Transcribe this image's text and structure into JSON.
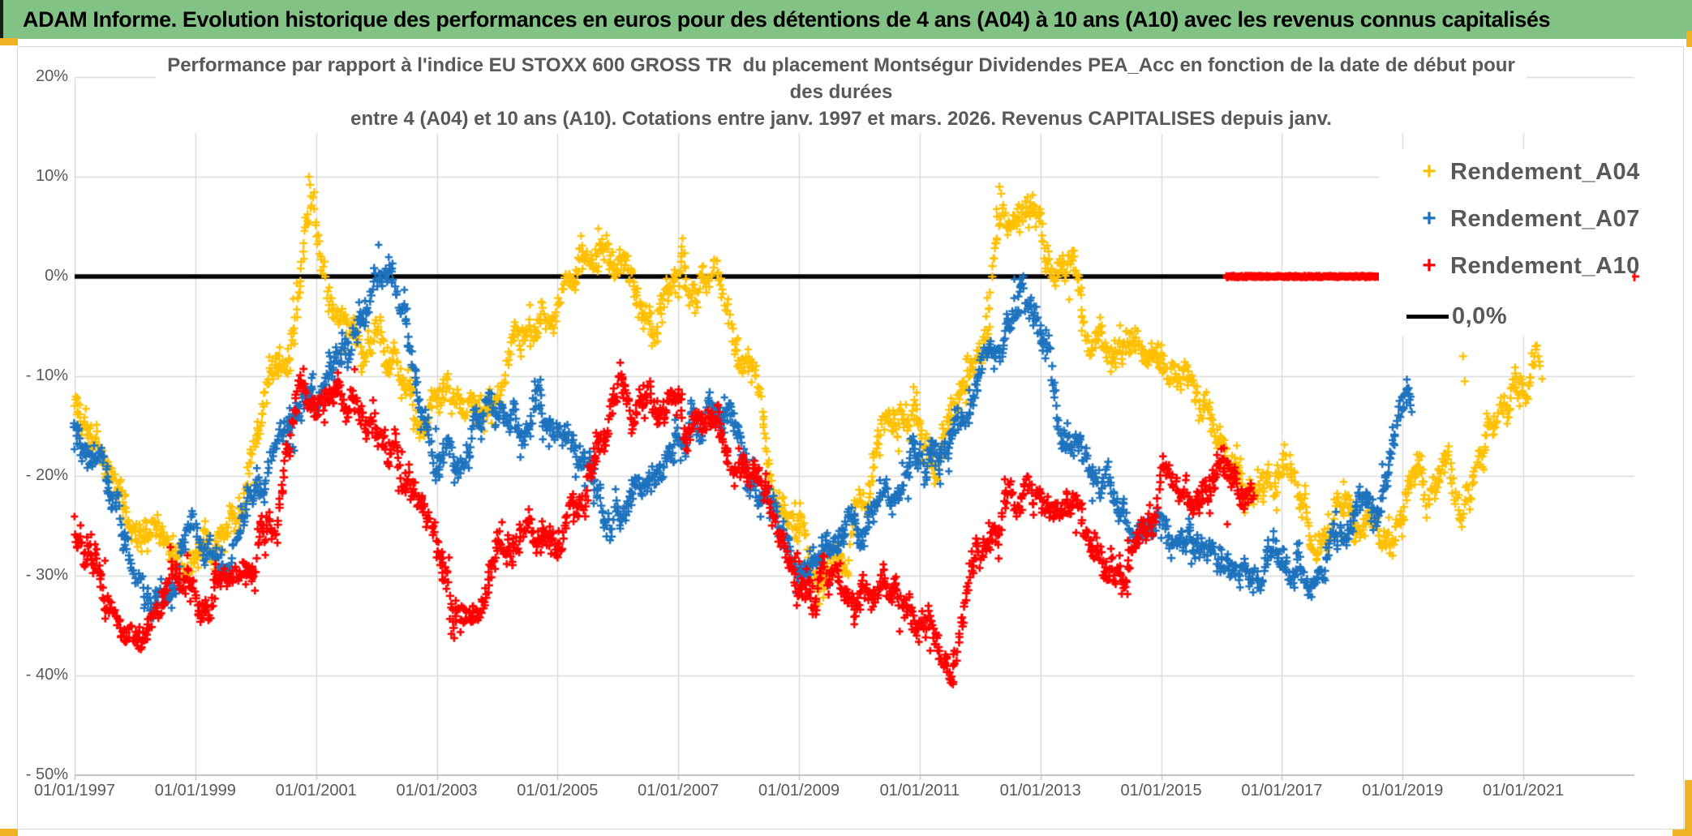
{
  "header": {
    "title": "ADAM Informe. Evolution historique des performances en euros pour des détentions de 4 ans (A04) à 10 ans (A10) avec les revenus connus capitalisés",
    "bg_color": "#82C385",
    "accent_color": "#F0B323"
  },
  "chart": {
    "title_lines": [
      "Performance par rapport à l'indice EU STOXX 600 GROSS TR  du placement Montségur Dividendes PEA_Acc en fonction de la date de début pour",
      "des durées",
      "entre 4 (A04) et 10 ans (A10). Cotations entre janv. 1997 et mars. 2026. Revenus CAPITALISES depuis janv."
    ],
    "text_color": "#595959",
    "grid_color": "#D9D9D9",
    "axis_color": "#BFBFBF"
  },
  "chart_data": {
    "type": "scatter",
    "title": "Performance par rapport à l'indice EU STOXX 600 GROSS TR du placement Montségur Dividendes PEA_Acc",
    "legend_position": "right-inside",
    "grid": true,
    "y_axis": {
      "unit": "%",
      "range": [
        -50,
        20
      ],
      "ticks": [
        {
          "label": "20%",
          "value": 20
        },
        {
          "label": "10%",
          "value": 10
        },
        {
          "label": "0%",
          "value": 0
        },
        {
          "label": "- 10%",
          "value": -10
        },
        {
          "label": "- 20%",
          "value": -20
        },
        {
          "label": "- 30%",
          "value": -30
        },
        {
          "label": "- 40%",
          "value": -40
        },
        {
          "label": "- 50%",
          "value": -50
        }
      ]
    },
    "x_axis": {
      "min_year": 1997.0,
      "max_year": 2022.85,
      "ticks": [
        {
          "label": "01/01/1997",
          "year": 1997
        },
        {
          "label": "01/01/1999",
          "year": 1999
        },
        {
          "label": "01/01/2001",
          "year": 2001
        },
        {
          "label": "01/01/2003",
          "year": 2003
        },
        {
          "label": "01/01/2005",
          "year": 2005
        },
        {
          "label": "01/01/2007",
          "year": 2007
        },
        {
          "label": "01/01/2009",
          "year": 2009
        },
        {
          "label": "01/01/2011",
          "year": 2011
        },
        {
          "label": "01/01/2013",
          "year": 2013
        },
        {
          "label": "01/01/2015",
          "year": 2015
        },
        {
          "label": "01/01/2017",
          "year": 2017
        },
        {
          "label": "01/01/2019",
          "year": 2019
        },
        {
          "label": "01/01/2021",
          "year": 2021
        }
      ]
    },
    "reference_line": {
      "name": "0,0%",
      "value": 0,
      "color": "#000000",
      "from_year": 1997.0,
      "to_year": 2016.08
    },
    "series": [
      {
        "name": "Rendement_A04",
        "color": "#FFC000",
        "marker": "plus",
        "seed": 11,
        "spread": 1.4,
        "lw": 2.3,
        "waypoints": [
          [
            1997.0,
            -13
          ],
          [
            1997.3,
            -17
          ],
          [
            1997.65,
            -20
          ],
          [
            1998.0,
            -26
          ],
          [
            1998.3,
            -22
          ],
          [
            1998.65,
            -23
          ],
          [
            1999.0,
            -25
          ],
          [
            1999.3,
            -27
          ],
          [
            1999.7,
            -23
          ],
          [
            2000.0,
            -18
          ],
          [
            2000.3,
            -10
          ],
          [
            2000.6,
            -5
          ],
          [
            2000.85,
            4
          ],
          [
            2000.95,
            6
          ],
          [
            2001.1,
            1
          ],
          [
            2001.3,
            -3
          ],
          [
            2001.6,
            -6
          ],
          [
            2001.9,
            -7
          ],
          [
            2002.2,
            -9
          ],
          [
            2002.5,
            -12
          ],
          [
            2002.8,
            -15
          ],
          [
            2003.1,
            -14
          ],
          [
            2003.4,
            -14.5
          ],
          [
            2003.7,
            -13
          ],
          [
            2004.0,
            -11
          ],
          [
            2004.3,
            -8
          ],
          [
            2004.6,
            -5.5
          ],
          [
            2004.9,
            -3
          ],
          [
            2005.15,
            -0.5
          ],
          [
            2005.4,
            1.5
          ],
          [
            2005.7,
            2.5
          ],
          [
            2006.0,
            1.5
          ],
          [
            2006.2,
            -0.5
          ],
          [
            2006.45,
            -5
          ],
          [
            2006.65,
            -3.5
          ],
          [
            2006.85,
            -1
          ],
          [
            2007.1,
            0.5
          ],
          [
            2007.3,
            -0.5
          ],
          [
            2007.5,
            1
          ],
          [
            2007.7,
            -1
          ],
          [
            2007.9,
            -4
          ],
          [
            2008.1,
            -8
          ],
          [
            2008.3,
            -12
          ],
          [
            2008.5,
            -16
          ],
          [
            2008.75,
            -21
          ],
          [
            2009.0,
            -26
          ],
          [
            2009.2,
            -30
          ],
          [
            2009.5,
            -29
          ],
          [
            2009.8,
            -26.5
          ],
          [
            2010.1,
            -23
          ],
          [
            2010.4,
            -17
          ],
          [
            2010.7,
            -15
          ],
          [
            2011.0,
            -15
          ],
          [
            2011.2,
            -17
          ],
          [
            2011.5,
            -15
          ],
          [
            2011.75,
            -11
          ],
          [
            2012.0,
            -7
          ],
          [
            2012.15,
            -2
          ],
          [
            2012.3,
            4.5
          ],
          [
            2012.5,
            4
          ],
          [
            2012.7,
            3
          ],
          [
            2012.85,
            2
          ],
          [
            2013.0,
            4.5
          ],
          [
            2013.2,
            2.5
          ],
          [
            2013.45,
            0
          ],
          [
            2013.6,
            -1.5
          ],
          [
            2013.8,
            -6
          ],
          [
            2014.0,
            -9
          ],
          [
            2014.2,
            -10
          ],
          [
            2014.45,
            -8
          ],
          [
            2014.65,
            -7
          ],
          [
            2014.9,
            -8
          ],
          [
            2015.1,
            -9
          ],
          [
            2015.35,
            -11
          ],
          [
            2015.6,
            -13
          ],
          [
            2015.85,
            -16
          ],
          [
            2016.1,
            -17
          ],
          [
            2016.35,
            -19
          ],
          [
            2016.6,
            -19
          ],
          [
            2016.85,
            -20
          ],
          [
            2017.1,
            -21
          ],
          [
            2017.35,
            -23
          ],
          [
            2017.6,
            -25
          ],
          [
            2017.85,
            -23
          ],
          [
            2018.1,
            -23.5
          ],
          [
            2018.35,
            -26
          ],
          [
            2018.6,
            -25
          ],
          [
            2018.85,
            -24
          ],
          [
            2019.1,
            -22
          ],
          [
            2019.3,
            -21
          ],
          [
            2019.5,
            -22
          ],
          [
            2019.7,
            -19.5
          ],
          [
            2019.95,
            -22
          ],
          [
            2020.1,
            -20
          ],
          [
            2020.35,
            -17
          ],
          [
            2020.6,
            -13.5
          ],
          [
            2020.8,
            -12
          ],
          [
            2021.0,
            -9.5
          ],
          [
            2021.15,
            -7.5
          ],
          [
            2021.3,
            -6.5
          ]
        ],
        "outliers": [
          [
            2000.88,
            10
          ],
          [
            2000.9,
            9.2
          ],
          [
            2012.32,
            9
          ],
          [
            2012.35,
            8.3
          ],
          [
            2020.0,
            -8
          ],
          [
            2020.03,
            -10.5
          ]
        ]
      },
      {
        "name": "Rendement_A07",
        "color": "#1E73BE",
        "marker": "plus",
        "seed": 22,
        "spread": 1.3,
        "lw": 2.5,
        "waypoints": [
          [
            1997.0,
            -15
          ],
          [
            1997.3,
            -18
          ],
          [
            1997.6,
            -21
          ],
          [
            1997.9,
            -26
          ],
          [
            1998.2,
            -31
          ],
          [
            1998.5,
            -30
          ],
          [
            1998.8,
            -26
          ],
          [
            1999.1,
            -26
          ],
          [
            1999.4,
            -29
          ],
          [
            1999.7,
            -26
          ],
          [
            2000.0,
            -22
          ],
          [
            2000.3,
            -19
          ],
          [
            2000.6,
            -15
          ],
          [
            2000.9,
            -11
          ],
          [
            2001.2,
            -9
          ],
          [
            2001.5,
            -7
          ],
          [
            2001.75,
            -3
          ],
          [
            2002.0,
            1.5
          ],
          [
            2002.15,
            2.5
          ],
          [
            2002.35,
            -1
          ],
          [
            2002.6,
            -7
          ],
          [
            2002.85,
            -13
          ],
          [
            2003.1,
            -17
          ],
          [
            2003.35,
            -20
          ],
          [
            2003.6,
            -15
          ],
          [
            2003.85,
            -13
          ],
          [
            2004.1,
            -13
          ],
          [
            2004.4,
            -14
          ],
          [
            2004.7,
            -13.5
          ],
          [
            2005.0,
            -16
          ],
          [
            2005.3,
            -19
          ],
          [
            2005.6,
            -23
          ],
          [
            2005.9,
            -24
          ],
          [
            2006.15,
            -22
          ],
          [
            2006.4,
            -21
          ],
          [
            2006.7,
            -19
          ],
          [
            2007.0,
            -16
          ],
          [
            2007.3,
            -14
          ],
          [
            2007.6,
            -13
          ],
          [
            2007.9,
            -16
          ],
          [
            2008.1,
            -19
          ],
          [
            2008.4,
            -22
          ],
          [
            2008.7,
            -25
          ],
          [
            2009.0,
            -28.5
          ],
          [
            2009.25,
            -31
          ],
          [
            2009.5,
            -29
          ],
          [
            2009.75,
            -27
          ],
          [
            2010.0,
            -25
          ],
          [
            2010.3,
            -23
          ],
          [
            2010.6,
            -22.5
          ],
          [
            2010.9,
            -18
          ],
          [
            2011.1,
            -19
          ],
          [
            2011.4,
            -18.5
          ],
          [
            2011.7,
            -15
          ],
          [
            2012.0,
            -11
          ],
          [
            2012.2,
            -7
          ],
          [
            2012.45,
            -4
          ],
          [
            2012.65,
            -2
          ],
          [
            2012.9,
            -5
          ],
          [
            2013.1,
            -9.5
          ],
          [
            2013.3,
            -13
          ],
          [
            2013.5,
            -16
          ],
          [
            2013.7,
            -18
          ],
          [
            2013.95,
            -21
          ],
          [
            2014.2,
            -23
          ],
          [
            2014.5,
            -24
          ],
          [
            2014.8,
            -25
          ],
          [
            2015.1,
            -25.5
          ],
          [
            2015.4,
            -26
          ],
          [
            2015.7,
            -27
          ],
          [
            2016.0,
            -27.5
          ],
          [
            2016.25,
            -29
          ],
          [
            2016.5,
            -28
          ],
          [
            2016.8,
            -28.5
          ],
          [
            2017.05,
            -27.5
          ],
          [
            2017.3,
            -29.5
          ],
          [
            2017.6,
            -29
          ],
          [
            2017.9,
            -27
          ],
          [
            2018.2,
            -24.5
          ],
          [
            2018.45,
            -22
          ],
          [
            2018.7,
            -19.5
          ],
          [
            2018.9,
            -16.5
          ],
          [
            2019.05,
            -13.5
          ],
          [
            2019.15,
            -12
          ]
        ],
        "outliers": []
      },
      {
        "name": "Rendement_A10",
        "color": "#FF0000",
        "marker": "plus",
        "seed": 33,
        "spread": 1.35,
        "lw": 2.6,
        "waypoints": [
          [
            1997.0,
            -26
          ],
          [
            1997.3,
            -29
          ],
          [
            1997.6,
            -32
          ],
          [
            1997.9,
            -35
          ],
          [
            1998.1,
            -36.5
          ],
          [
            1998.4,
            -34
          ],
          [
            1998.7,
            -32
          ],
          [
            1999.0,
            -31
          ],
          [
            1999.3,
            -33
          ],
          [
            1999.6,
            -32
          ],
          [
            1999.9,
            -29
          ],
          [
            2000.2,
            -24
          ],
          [
            2000.5,
            -18
          ],
          [
            2000.8,
            -12
          ],
          [
            2001.05,
            -10.5
          ],
          [
            2001.3,
            -12
          ],
          [
            2001.6,
            -11.5
          ],
          [
            2001.9,
            -14
          ],
          [
            2002.2,
            -17
          ],
          [
            2002.5,
            -20
          ],
          [
            2002.8,
            -25
          ],
          [
            2003.1,
            -30
          ],
          [
            2003.4,
            -34
          ],
          [
            2003.65,
            -36.5
          ],
          [
            2003.9,
            -31
          ],
          [
            2004.1,
            -27
          ],
          [
            2004.4,
            -25.5
          ],
          [
            2004.7,
            -26
          ],
          [
            2005.0,
            -27
          ],
          [
            2005.2,
            -25
          ],
          [
            2005.45,
            -22
          ],
          [
            2005.7,
            -16
          ],
          [
            2005.95,
            -10
          ],
          [
            2006.15,
            -9
          ],
          [
            2006.35,
            -11
          ],
          [
            2006.55,
            -13
          ],
          [
            2006.8,
            -15
          ],
          [
            2007.05,
            -15.5
          ],
          [
            2007.3,
            -15
          ],
          [
            2007.55,
            -16
          ],
          [
            2007.8,
            -17
          ],
          [
            2008.05,
            -19
          ],
          [
            2008.3,
            -21.5
          ],
          [
            2008.6,
            -24
          ],
          [
            2008.9,
            -27
          ],
          [
            2009.15,
            -30
          ],
          [
            2009.4,
            -31
          ],
          [
            2009.65,
            -31.5
          ],
          [
            2009.9,
            -32.5
          ],
          [
            2010.15,
            -32
          ],
          [
            2010.4,
            -32.5
          ],
          [
            2010.7,
            -34
          ],
          [
            2011.0,
            -35
          ],
          [
            2011.25,
            -36.5
          ],
          [
            2011.5,
            -37.5
          ],
          [
            2011.75,
            -32
          ],
          [
            2012.0,
            -28
          ],
          [
            2012.2,
            -25
          ],
          [
            2012.45,
            -22.5
          ],
          [
            2012.7,
            -22
          ],
          [
            2013.0,
            -22.5
          ],
          [
            2013.3,
            -23
          ],
          [
            2013.55,
            -25
          ],
          [
            2013.8,
            -28
          ],
          [
            2014.05,
            -29.5
          ],
          [
            2014.25,
            -29
          ],
          [
            2014.5,
            -27
          ],
          [
            2014.75,
            -24
          ],
          [
            2015.0,
            -21.5
          ],
          [
            2015.25,
            -21
          ],
          [
            2015.5,
            -22.5
          ],
          [
            2015.75,
            -22
          ],
          [
            2016.0,
            -22
          ],
          [
            2016.3,
            -21.5
          ],
          [
            2016.55,
            -21
          ]
        ],
        "outliers": [],
        "zero_segments": [
          [
            2016.08,
            2018.66
          ]
        ],
        "isolated_points": [
          [
            2022.84,
            0
          ]
        ]
      }
    ]
  }
}
